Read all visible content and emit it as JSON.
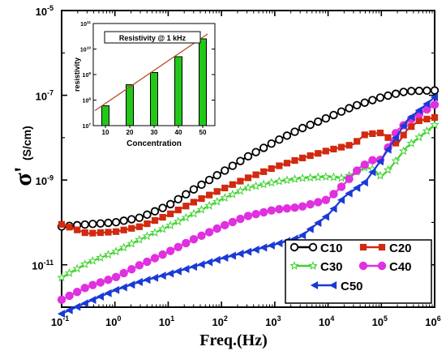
{
  "chart_data": [
    {
      "type": "line",
      "xscale": "log",
      "yscale": "log",
      "xlabel": "Freq.(Hz)",
      "ylabel_symbol": "σ'",
      "ylabel_unit": "(S/cm)",
      "xlim": [
        0.1,
        1000000
      ],
      "ylim": [
        1e-12,
        1e-05
      ],
      "x_ticks": [
        {
          "v": 0.1,
          "base": "10",
          "exp": "-1"
        },
        {
          "v": 1,
          "base": "10",
          "exp": "0"
        },
        {
          "v": 10,
          "base": "10",
          "exp": "1"
        },
        {
          "v": 100,
          "base": "10",
          "exp": "2"
        },
        {
          "v": 1000,
          "base": "10",
          "exp": "3"
        },
        {
          "v": 10000,
          "base": "10",
          "exp": "4"
        },
        {
          "v": 100000,
          "base": "10",
          "exp": "5"
        },
        {
          "v": 1000000,
          "base": "10",
          "exp": "6"
        }
      ],
      "y_ticks": [
        {
          "v": 1e-11,
          "base": "10",
          "exp": "-11"
        },
        {
          "v": 1e-09,
          "base": "10",
          "exp": "-9"
        },
        {
          "v": 1e-07,
          "base": "10",
          "exp": "-7"
        },
        {
          "v": 1e-05,
          "base": "10",
          "exp": "-5"
        }
      ],
      "legend_position": "bottom-right",
      "series": [
        {
          "name": "C10",
          "color": "#000000",
          "marker": "circle-open",
          "marker_fill": "#ffffff",
          "x": [
            0.1,
            0.3,
            1,
            3,
            10,
            30,
            100,
            300,
            1000,
            3000,
            10000,
            30000,
            100000,
            300000,
            1000000
          ],
          "y": [
            8e-11,
            9e-11,
            1e-10,
            1.3e-10,
            2.5e-10,
            6e-10,
            1.5e-09,
            3.5e-09,
            8e-09,
            1.6e-08,
            3e-08,
            5.5e-08,
            9e-08,
            1.25e-07,
            1.3e-07
          ]
        },
        {
          "name": "C20",
          "color": "#d12a10",
          "marker": "square",
          "marker_fill": "#d12a10",
          "x": [
            0.1,
            0.3,
            1,
            3,
            10,
            30,
            100,
            300,
            1000,
            3000,
            10000,
            30000,
            50000,
            100000,
            200000,
            300000,
            500000,
            1000000
          ],
          "y": [
            9e-11,
            5.5e-11,
            6e-11,
            8e-11,
            1.5e-10,
            3e-10,
            6e-10,
            1.1e-09,
            2e-09,
            3.2e-09,
            5e-09,
            7e-09,
            1.2e-08,
            1.3e-08,
            7e-09,
            1.5e-08,
            2.5e-08,
            3e-08
          ]
        },
        {
          "name": "C30",
          "color": "#3cd32c",
          "marker": "star",
          "marker_fill": "#ffffff",
          "x": [
            0.1,
            0.3,
            1,
            3,
            10,
            30,
            100,
            300,
            1000,
            3000,
            10000,
            20000,
            50000,
            70000,
            100000,
            150000,
            300000,
            1000000
          ],
          "y": [
            5e-12,
            1.1e-11,
            2e-11,
            4e-11,
            8e-11,
            1.6e-10,
            3.5e-10,
            6.5e-10,
            9e-10,
            1.1e-09,
            1.2e-09,
            1.1e-09,
            2e-09,
            1.8e-09,
            1.2e-09,
            2e-09,
            6e-09,
            2e-08
          ]
        },
        {
          "name": "C40",
          "color": "#e030e0",
          "marker": "circle",
          "marker_fill": "#e030e0",
          "x": [
            0.1,
            0.3,
            1,
            3,
            10,
            30,
            100,
            300,
            1000,
            3000,
            10000,
            20000,
            40000,
            70000,
            100000,
            200000,
            400000,
            1000000
          ],
          "y": [
            1.5e-12,
            3e-12,
            5e-12,
            1e-11,
            2e-11,
            4e-11,
            8e-11,
            1.4e-10,
            2e-10,
            2.3e-10,
            3.5e-10,
            8e-10,
            2e-09,
            3e-09,
            3e-09,
            1.5e-08,
            3e-08,
            6e-08
          ]
        },
        {
          "name": "C50",
          "color": "#1a3ad6",
          "marker": "triangle-left",
          "marker_fill": "#1a3ad6",
          "x": [
            0.1,
            0.3,
            1,
            3,
            10,
            30,
            100,
            300,
            1000,
            3000,
            10000,
            20000,
            50000,
            100000,
            300000,
            1000000
          ],
          "y": [
            7e-13,
            1.3e-12,
            2.5e-12,
            4e-12,
            6e-12,
            9e-12,
            1.4e-11,
            2e-11,
            3e-11,
            4.5e-11,
            1.5e-10,
            4e-10,
            9e-10,
            3e-09,
            2.5e-08,
            9e-08
          ]
        }
      ]
    },
    {
      "type": "bar",
      "title": "Resistivity @ 1 kHz",
      "xlabel": "Concentration",
      "ylabel": "resistivity",
      "yscale": "log",
      "ylim": [
        10000000,
        100000000000
      ],
      "categories": [
        "10",
        "20",
        "30",
        "40",
        "50"
      ],
      "values": [
        60000000,
        400000000,
        1200000000,
        5000000000,
        25000000000
      ],
      "bar_color": "#22c818",
      "trendline_color": "#b34a2a",
      "y_ticks": [
        {
          "v": 10000000,
          "base": "10",
          "exp": "7"
        },
        {
          "v": 100000000,
          "base": "10",
          "exp": "8"
        },
        {
          "v": 1000000000,
          "base": "10",
          "exp": "9"
        },
        {
          "v": 10000000000,
          "base": "10",
          "exp": "10"
        },
        {
          "v": 100000000000,
          "base": "10",
          "exp": "11"
        }
      ]
    }
  ]
}
